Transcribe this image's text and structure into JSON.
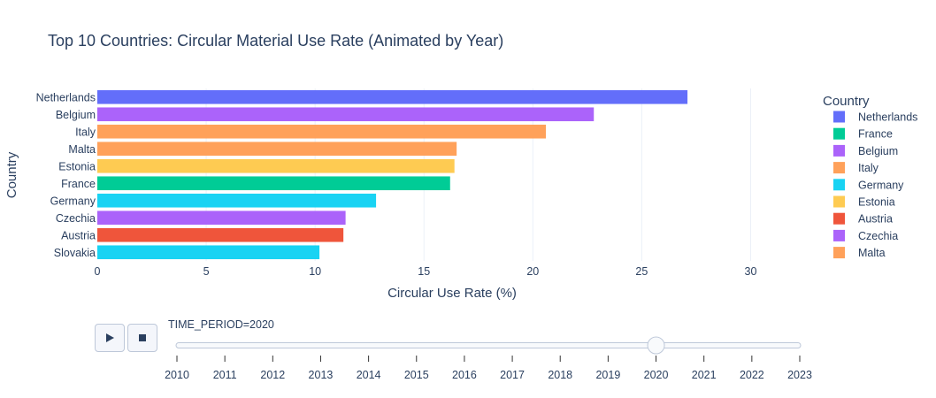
{
  "chart_data": {
    "type": "bar",
    "orientation": "horizontal",
    "title": "Top 10 Countries: Circular Material Use Rate (Animated by Year)",
    "xlabel": "Circular Use Rate (%)",
    "ylabel": "Country",
    "xlim": [
      0,
      32.5
    ],
    "xticks": [
      0,
      5,
      10,
      15,
      20,
      25,
      30
    ],
    "grid": true,
    "categories": [
      "Netherlands",
      "Belgium",
      "Italy",
      "Malta",
      "Estonia",
      "France",
      "Germany",
      "Czechia",
      "Austria",
      "Slovakia"
    ],
    "values": [
      27.1,
      22.8,
      20.6,
      16.5,
      16.4,
      16.2,
      12.8,
      11.4,
      11.3,
      10.2
    ],
    "bar_colors": [
      "#636efa",
      "#ab63fa",
      "#ffa15a",
      "#ffa15a",
      "#fecb52",
      "#00cc96",
      "#19d3f3",
      "#ab63fa",
      "#ef553b",
      "#19d3f3"
    ],
    "legend": {
      "title": "Country",
      "placement": "right",
      "entries": [
        {
          "name": "Netherlands",
          "color": "#636efa"
        },
        {
          "name": "France",
          "color": "#00cc96"
        },
        {
          "name": "Belgium",
          "color": "#ab63fa"
        },
        {
          "name": "Italy",
          "color": "#ffa15a"
        },
        {
          "name": "Germany",
          "color": "#19d3f3"
        },
        {
          "name": "Estonia",
          "color": "#fecb52"
        },
        {
          "name": "Austria",
          "color": "#ef553b"
        },
        {
          "name": "Czechia",
          "color": "#ab63fa"
        },
        {
          "name": "Malta",
          "color": "#ffa15a"
        }
      ]
    }
  },
  "animation": {
    "current_label": "TIME_PERIOD=2020",
    "current_year": 2020,
    "years": [
      "2010",
      "2011",
      "2012",
      "2013",
      "2014",
      "2015",
      "2016",
      "2017",
      "2018",
      "2019",
      "2020",
      "2021",
      "2022",
      "2023"
    ],
    "play_icon": "play-icon",
    "stop_icon": "stop-icon"
  }
}
